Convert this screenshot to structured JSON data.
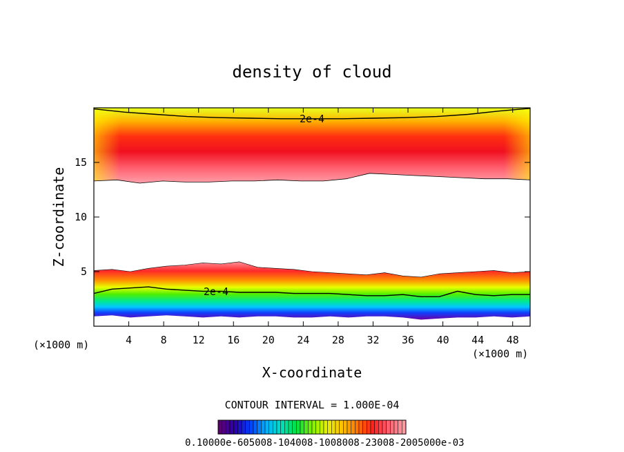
{
  "chart_data": {
    "type": "heatmap",
    "title": "density of cloud",
    "xlabel": "X-coordinate",
    "ylabel": "Z-coordinate",
    "x_unit_left": "(×1000 m)",
    "x_unit_right": "(×1000 m)",
    "xlim": [
      0,
      50
    ],
    "ylim": [
      0,
      20
    ],
    "x_ticks": [
      4,
      8,
      12,
      16,
      20,
      24,
      28,
      32,
      36,
      40,
      44,
      48
    ],
    "y_ticks": [
      5,
      10,
      15
    ],
    "contour_label": "2e-4",
    "contour_interval_text": "CONTOUR INTERVAL = 1.000E-04",
    "colorbar_labels_text": "0.10000e-605008-104008-1008008-23008-2005000e-03",
    "colorbar_colors": [
      "#5a0070",
      "#2a00b0",
      "#0040ff",
      "#00b0ff",
      "#00e0c0",
      "#00e040",
      "#80f000",
      "#e8f000",
      "#ffc000",
      "#ff7000",
      "#ff2020",
      "#ff6070",
      "#ff9aa0"
    ],
    "upper_layer": {
      "z_bottom": [
        13.3,
        13.4,
        13.1,
        13.3,
        13.2,
        13.2,
        13.3,
        13.3,
        13.4,
        13.3,
        13.3,
        13.5,
        14.0,
        13.9,
        13.8,
        13.7,
        13.6,
        13.5,
        13.5,
        13.4
      ],
      "z_top_contour": [
        19.9,
        19.6,
        19.4,
        19.2,
        19.1,
        19.05,
        19.0,
        19.0,
        19.0,
        19.05,
        19.1,
        19.2,
        19.4,
        19.7,
        19.95
      ],
      "z_core": 15.8
    },
    "lower_layer": {
      "z_top": [
        5.1,
        5.2,
        5.0,
        5.3,
        5.5,
        5.6,
        5.8,
        5.7,
        5.9,
        5.4,
        5.3,
        5.2,
        5.0,
        4.9,
        4.8,
        4.7,
        4.9,
        4.6,
        4.5,
        4.8,
        4.9,
        5.0,
        5.1,
        4.9,
        5.0
      ],
      "z_2e4": [
        3.0,
        3.4,
        3.5,
        3.6,
        3.4,
        3.3,
        3.2,
        3.2,
        3.1,
        3.1,
        3.1,
        3.0,
        3.0,
        3.0,
        2.9,
        2.8,
        2.8,
        2.9,
        2.7,
        2.7,
        3.2,
        2.9,
        2.8,
        2.9,
        2.9
      ],
      "z_bottom": [
        0.9,
        1.0,
        0.8,
        0.9,
        1.0,
        0.9,
        0.8,
        0.9,
        0.8,
        0.9,
        0.9,
        0.8,
        0.8,
        0.9,
        0.8,
        0.9,
        0.9,
        0.8,
        0.6,
        0.7,
        0.8,
        0.8,
        0.9,
        0.8,
        0.9
      ]
    }
  }
}
